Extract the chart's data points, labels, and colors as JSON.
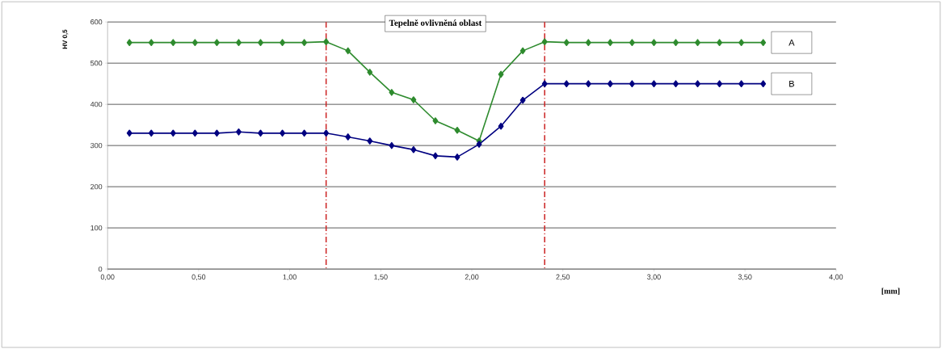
{
  "chart_data": {
    "type": "line",
    "xlabel": "[mm]",
    "ylabel": "HV 0,5",
    "annotations": [
      "Tepelně ovlivněná oblast"
    ],
    "x": [
      0.12,
      0.24,
      0.36,
      0.48,
      0.6,
      0.72,
      0.84,
      0.96,
      1.08,
      1.2,
      1.32,
      1.44,
      1.56,
      1.68,
      1.8,
      1.92,
      2.04,
      2.16,
      2.28,
      2.4,
      2.52,
      2.64,
      2.76,
      2.88,
      3.0,
      3.12,
      3.24,
      3.36,
      3.48,
      3.6
    ],
    "series": [
      {
        "name": "A",
        "color": "#2e8b2e",
        "values": [
          550,
          550,
          550,
          550,
          550,
          550,
          550,
          550,
          550,
          552,
          530,
          478,
          429,
          411,
          360,
          337,
          311,
          473,
          530,
          552,
          550,
          550,
          550,
          550,
          550,
          550,
          550,
          550,
          550,
          550
        ]
      },
      {
        "name": "B",
        "color": "#000080",
        "values": [
          330,
          330,
          330,
          330,
          330,
          333,
          330,
          330,
          330,
          330,
          321,
          311,
          300,
          290,
          275,
          272,
          303,
          347,
          410,
          450,
          450,
          450,
          450,
          450,
          450,
          450,
          450,
          450,
          450,
          450
        ]
      }
    ],
    "xlim": [
      0,
      4
    ],
    "ylim": [
      0,
      600
    ],
    "xticks": [
      {
        "value": 0,
        "label": "0,00"
      },
      {
        "value": 0.5,
        "label": "0,50"
      },
      {
        "value": 1,
        "label": "1,00"
      },
      {
        "value": 1.5,
        "label": "1,50"
      },
      {
        "value": 2,
        "label": "2,00"
      },
      {
        "value": 2.5,
        "label": "2,50"
      },
      {
        "value": 3,
        "label": "3,00"
      },
      {
        "value": 3.5,
        "label": "3,50"
      },
      {
        "value": 4,
        "label": "4,00"
      }
    ],
    "yticks": [
      0,
      100,
      200,
      300,
      400,
      500,
      600
    ],
    "ref_lines": [
      {
        "axis": "x",
        "value": 1.2,
        "color": "#cc2222",
        "line_style": "dashed"
      },
      {
        "axis": "x",
        "value": 2.4,
        "color": "#cc2222",
        "line_style": "dashed"
      }
    ],
    "grid": "y",
    "marker": "diamond",
    "line_style": "solid"
  }
}
